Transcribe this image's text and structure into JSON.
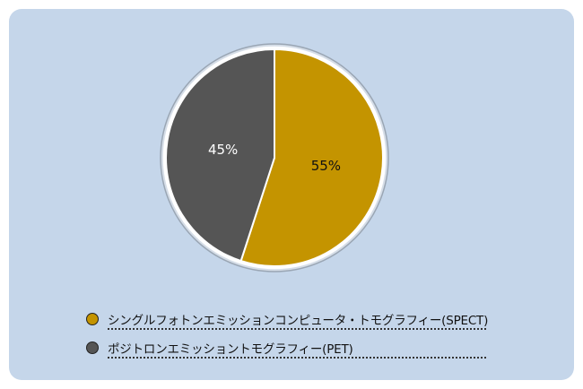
{
  "chart_data": {
    "type": "pie",
    "categories": [
      "シングルフォトンエミッションコンピュータ・トモグラフィー(SPECT)",
      "ポジトロンエミッショントモグラフィー(PET)"
    ],
    "values": [
      55,
      45
    ],
    "labels": [
      "55%",
      "45%"
    ],
    "colors": [
      "#c49400",
      "#555555"
    ],
    "legend_position": "bottom-left"
  },
  "legend": {
    "items": [
      {
        "label": "シングルフォトンエミッションコンピュータ・トモグラフィー(SPECT)",
        "color": "#c49400"
      },
      {
        "label": "ポジトロンエミッショントモグラフィー(PET)",
        "color": "#555555"
      }
    ]
  }
}
